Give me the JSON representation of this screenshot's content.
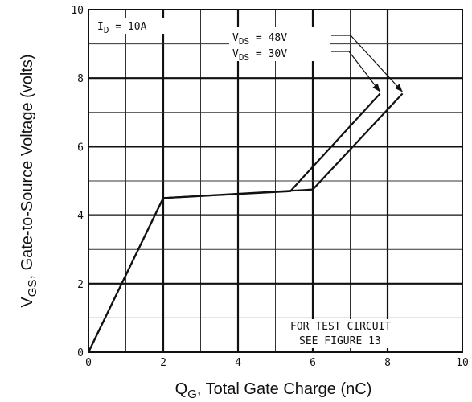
{
  "chart_data": {
    "type": "line",
    "xlabel": "Q",
    "xlabel_sub": "G",
    "xlabel_rest": ", Total Gate Charge (nC)",
    "ylabel": "V",
    "ylabel_sub": "GS",
    "ylabel_rest": ", Gate-to-Source Voltage (volts)",
    "xlim": [
      0,
      10
    ],
    "ylim": [
      0,
      10
    ],
    "xticks": [
      "0",
      "2",
      "4",
      "6",
      "8",
      "10"
    ],
    "yticks": [
      "0",
      "2",
      "4",
      "6",
      "8",
      "10"
    ],
    "grid": true,
    "series": [
      {
        "name": "V DS = 48V",
        "x": [
          0,
          2,
          6,
          8.4
        ],
        "y": [
          0,
          4.5,
          4.75,
          7.55
        ]
      },
      {
        "name": "V DS = 30V",
        "x": [
          0,
          2,
          5.4,
          7.8
        ],
        "y": [
          0,
          4.5,
          4.7,
          7.55
        ]
      }
    ],
    "annotations": {
      "id": {
        "main": "I",
        "sub": "D",
        "rest": " = 10A"
      },
      "vds48": {
        "main": "V",
        "sub": "DS",
        "rest": " =  48V"
      },
      "vds30": {
        "main": "V",
        "sub": "DS",
        "rest": " =  30V"
      },
      "test_line1": "FOR TEST CIRCUIT",
      "test_line2": "SEE FIGURE 13"
    }
  }
}
